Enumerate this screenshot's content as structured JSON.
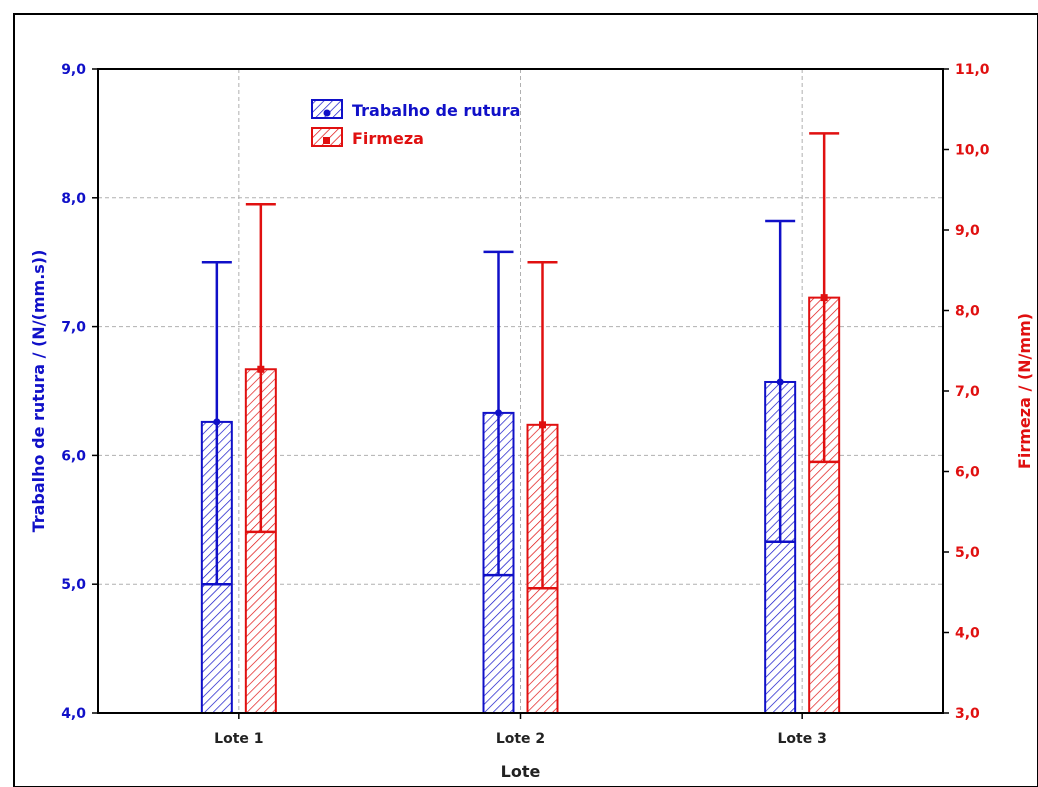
{
  "chart_data": {
    "type": "bar",
    "title": "",
    "xlabel": "Lote",
    "ylabel_left": "Trabalho de rutura / (N/(mm.s))",
    "ylabel_right": "Firmeza / (N/mm)",
    "categories": [
      "Lote 1",
      "Lote 2",
      "Lote 3"
    ],
    "y_left": {
      "min": 4.0,
      "max": 9.0,
      "ticks": [
        4.0,
        5.0,
        6.0,
        7.0,
        8.0,
        9.0
      ],
      "tick_labels": [
        "4,0",
        "5,0",
        "6,0",
        "7,0",
        "8,0",
        "9,0"
      ]
    },
    "y_right": {
      "min": 3.0,
      "max": 11.0,
      "ticks": [
        3.0,
        4.0,
        5.0,
        6.0,
        7.0,
        8.0,
        9.0,
        10.0,
        11.0
      ],
      "tick_labels": [
        "3,0",
        "4,0",
        "5,0",
        "6,0",
        "7,0",
        "8,0",
        "9,0",
        "10,0",
        "11,0"
      ]
    },
    "grid": true,
    "legend_position": "top-left",
    "series": [
      {
        "name": "Trabalho de rutura",
        "axis": "left",
        "color": "#1010c8",
        "values": [
          6.26,
          6.33,
          6.57
        ],
        "error_lower": [
          5.0,
          5.07,
          5.33
        ],
        "error_upper": [
          7.5,
          7.58,
          7.82
        ]
      },
      {
        "name": "Firmeza",
        "axis": "right",
        "color": "#e01010",
        "values": [
          7.27,
          6.58,
          8.16
        ],
        "error_lower": [
          5.25,
          4.55,
          6.12
        ],
        "error_upper": [
          9.32,
          8.6,
          10.2
        ]
      }
    ]
  }
}
